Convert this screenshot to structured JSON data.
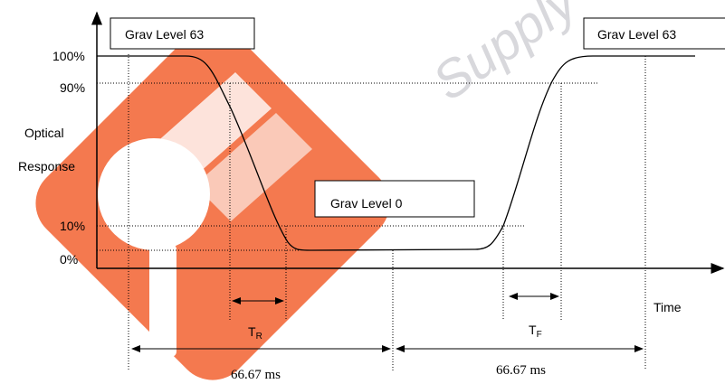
{
  "watermark": "Supply",
  "axis": {
    "ylabels": [
      "100%",
      "90%",
      "10%",
      "0%"
    ],
    "title_line1": "Optical",
    "title_line2": "Response",
    "xlabel": "Time"
  },
  "boxes": [
    "Grav Level 63",
    "Grav Level 0",
    "Grav Level 63"
  ],
  "tr": {
    "main": "T",
    "sub": "R"
  },
  "tf": {
    "main": "T",
    "sub": "F"
  },
  "periods": [
    "66.67 ms",
    "66.67 ms"
  ]
}
